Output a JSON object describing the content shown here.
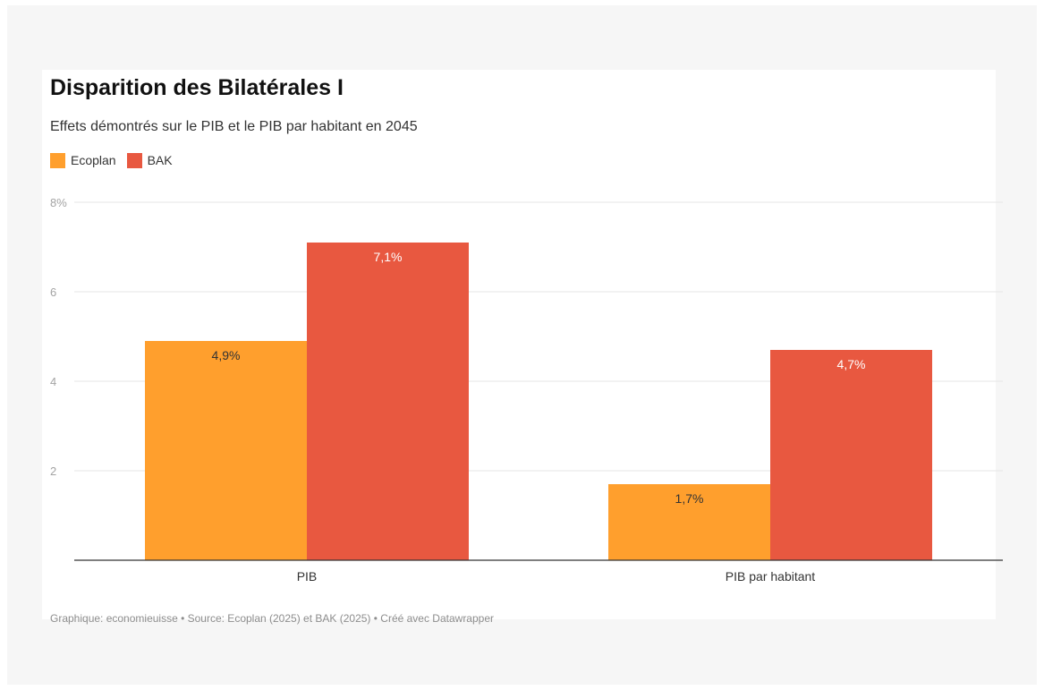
{
  "chart_data": {
    "type": "bar",
    "title": "Disparition des Bilatérales I",
    "subtitle": "Effets démontrés sur le PIB et le PIB par habitant en 2045",
    "categories": [
      "PIB",
      "PIB par habitant"
    ],
    "series": [
      {
        "name": "Ecoplan",
        "values": [
          4.9,
          1.7
        ],
        "labels": [
          "4,9%",
          "1,7%"
        ],
        "color": "#ff9f2d"
      },
      {
        "name": "BAK",
        "values": [
          7.1,
          4.7
        ],
        "labels": [
          "7,1%",
          "4,7%"
        ],
        "color": "#e85840"
      }
    ],
    "ylim": [
      0,
      8
    ],
    "yticks": [
      {
        "value": 2,
        "label": "2"
      },
      {
        "value": 4,
        "label": "4"
      },
      {
        "value": 6,
        "label": "6"
      },
      {
        "value": 8,
        "label": "8%"
      }
    ],
    "grid": true,
    "legend_position": "top-left",
    "xlabel": "",
    "ylabel": ""
  },
  "footer": "Graphique: economieuisse • Source: Ecoplan (2025) et BAK (2025) • Créé avec Datawrapper"
}
